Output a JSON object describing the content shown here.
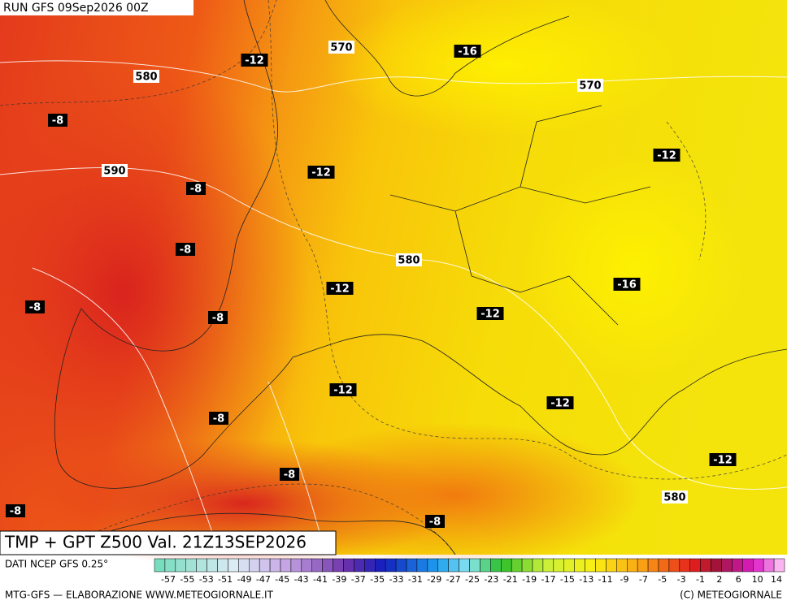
{
  "header": {
    "run": "RUN GFS 09Sep2026 00Z",
    "title": "TMP + GPT Z500 Val. 21Z13SEP2026"
  },
  "temperature_labels": [
    "-12",
    "-16",
    "-8",
    "-12",
    "-12",
    "-8",
    "-8",
    "-12",
    "-16",
    "-8",
    "-12",
    "-8",
    "-12",
    "-12",
    "-8",
    "-8",
    "-12",
    "-8",
    "-8"
  ],
  "height_labels": [
    "570",
    "580",
    "570",
    "590",
    "580",
    "580"
  ],
  "colorbar": {
    "ticks": [
      "-57",
      "-55",
      "-53",
      "-51",
      "-49",
      "-47",
      "-45",
      "-43",
      "-41",
      "-39",
      "-37",
      "-35",
      "-33",
      "-31",
      "-29",
      "-27",
      "-25",
      "-23",
      "-21",
      "-19",
      "-17",
      "-15",
      "-13",
      "-11",
      "-9",
      "-7",
      "-5",
      "-3",
      "-1",
      "2",
      "6",
      "10",
      "14"
    ]
  },
  "footer": {
    "source": "DATI NCEP GFS 0.25°",
    "credits": "MTG-GFS — ELABORAZIONE WWW.METEOGIORNALE.IT",
    "copyright": "(C) METEOGIORNALE"
  }
}
